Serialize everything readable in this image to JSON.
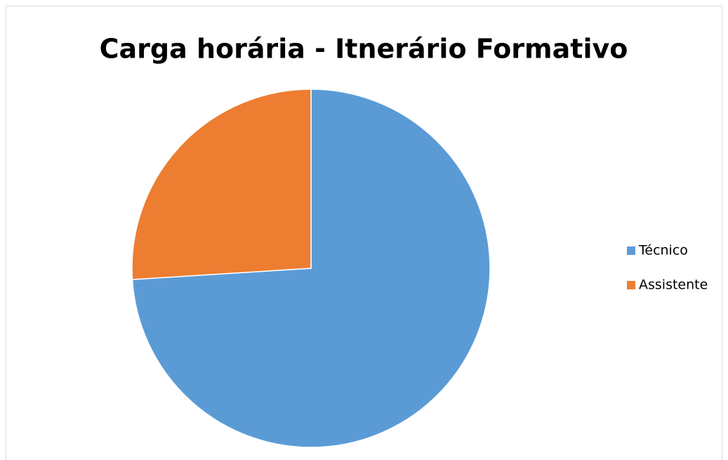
{
  "chart_data": {
    "type": "pie",
    "title": "Carga horária - Itnerário Formativo",
    "categories": [
      "Técnico",
      "Assistente"
    ],
    "values": [
      74,
      26
    ],
    "colors": [
      "#5b9bd5",
      "#ed7d31"
    ],
    "legend": "right"
  }
}
